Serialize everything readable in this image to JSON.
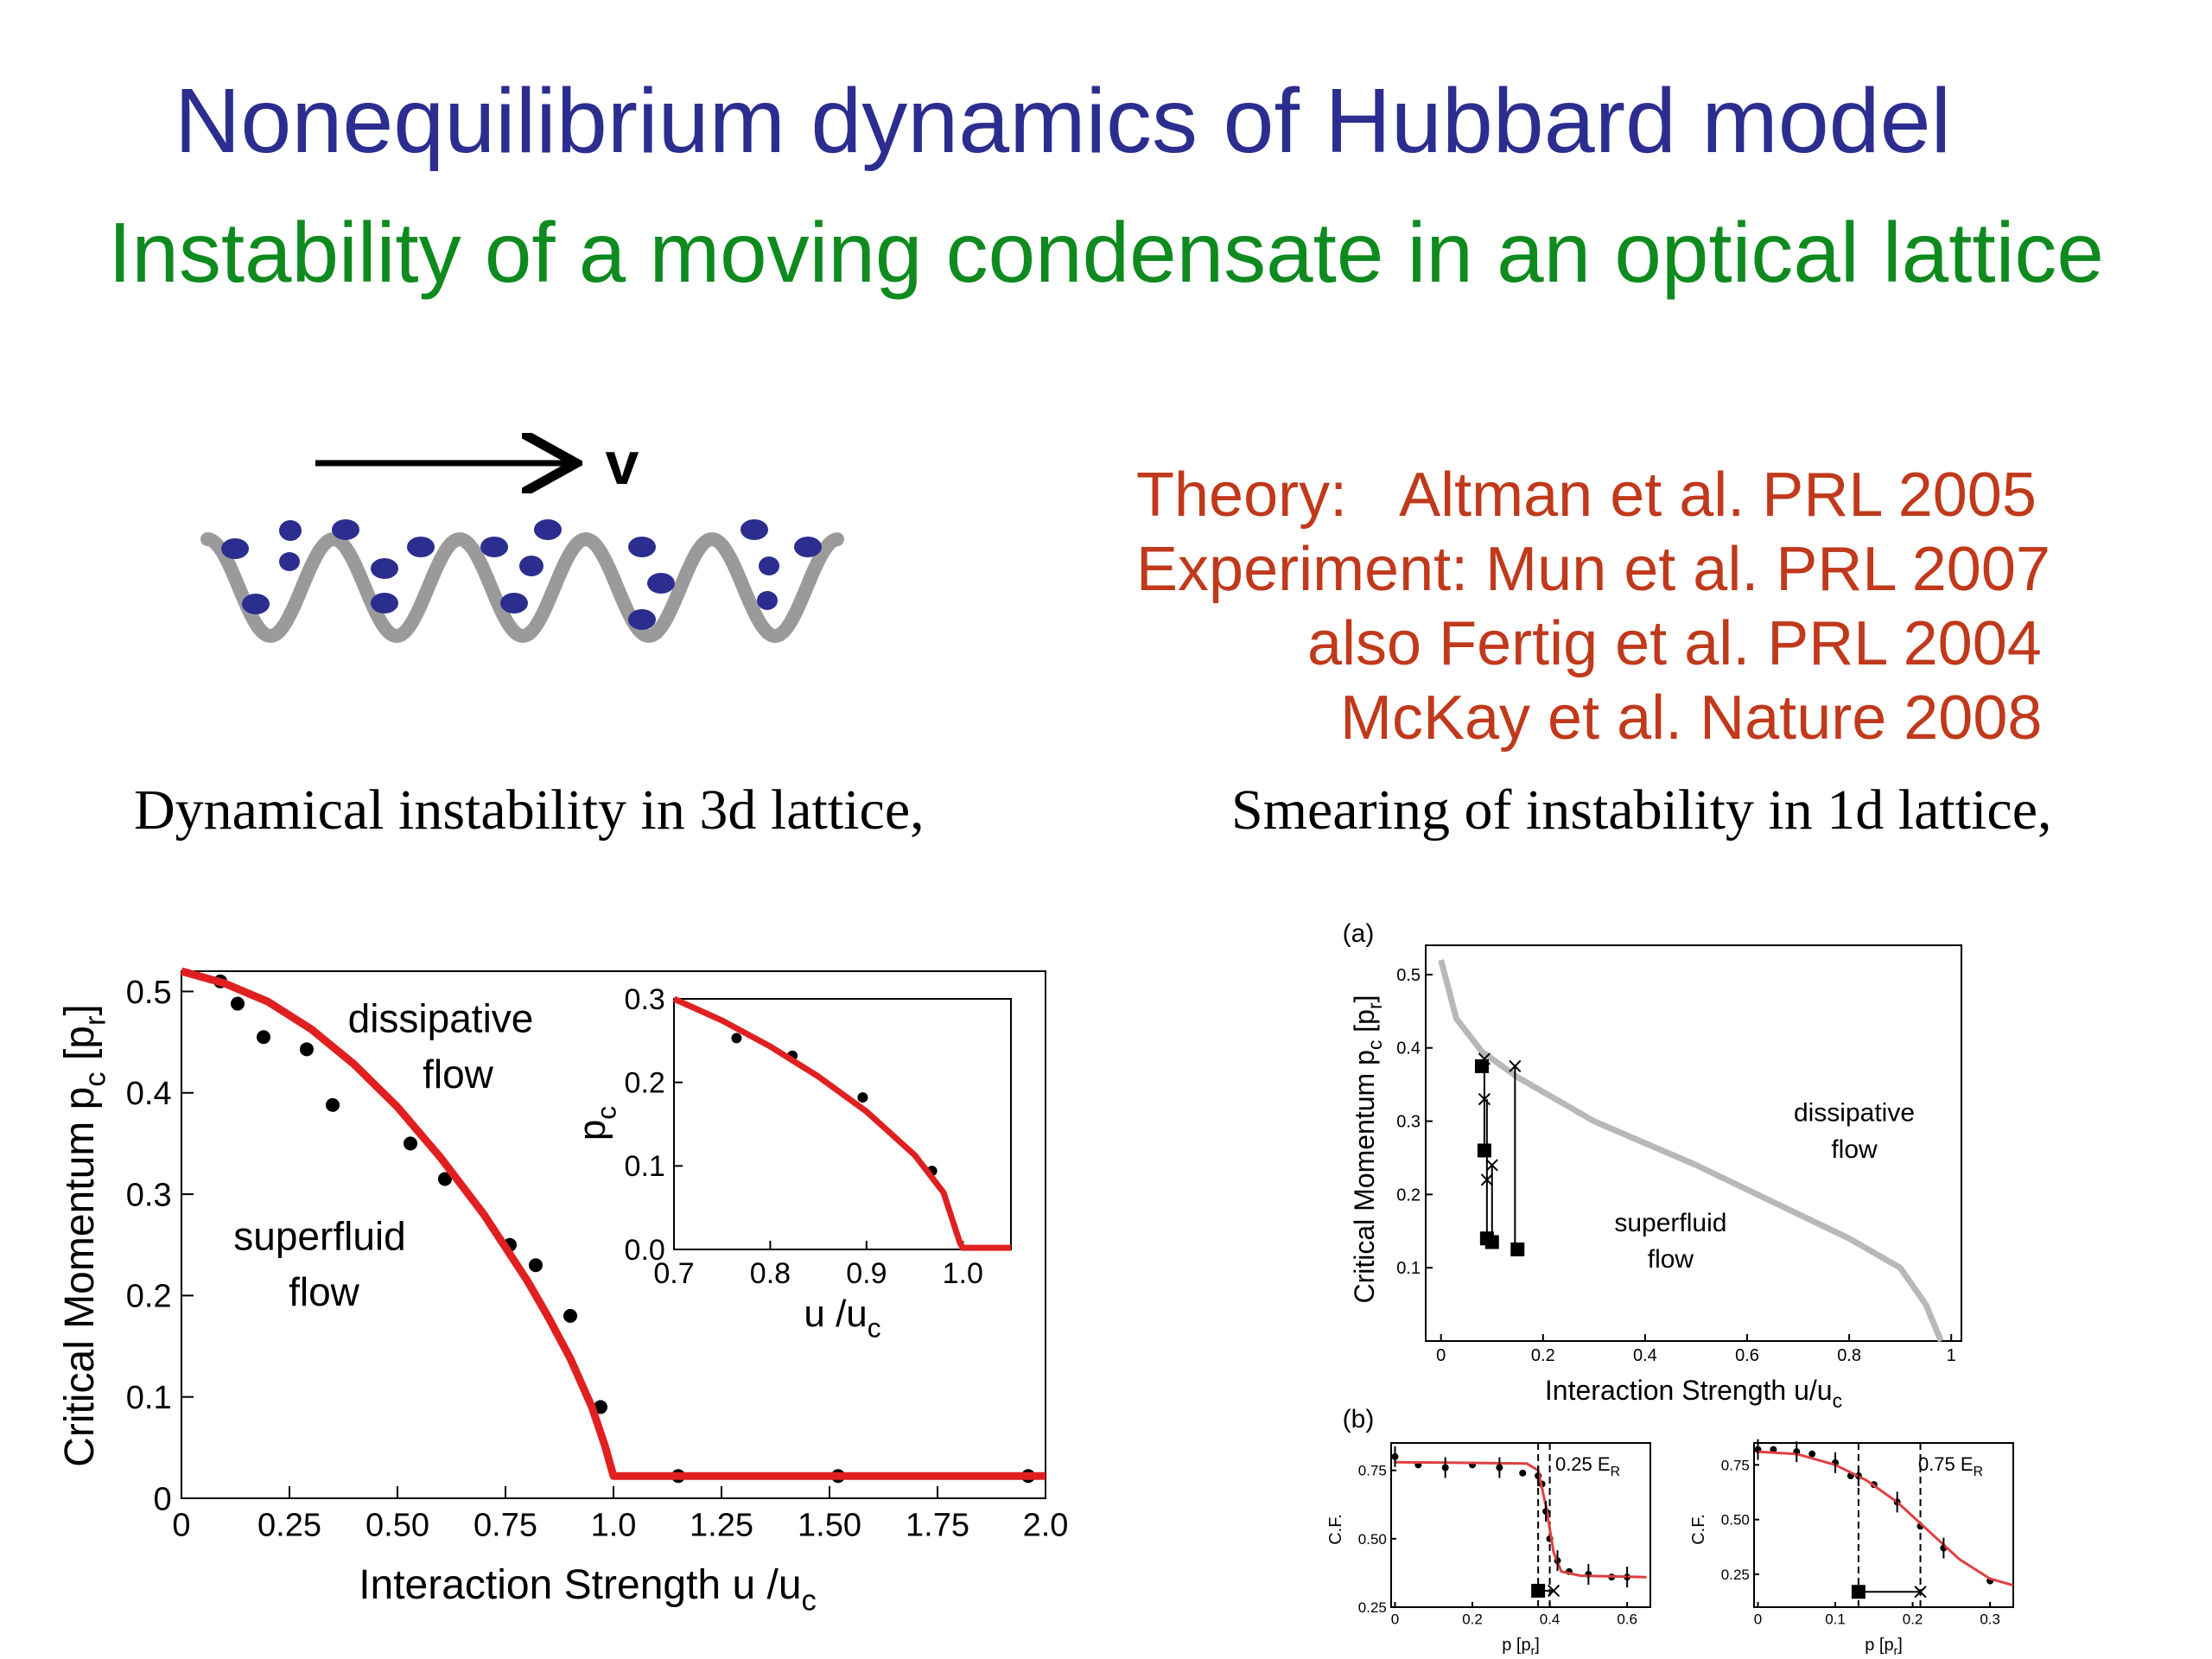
{
  "slide": {
    "title": "Nonequilibrium dynamics of Hubbard model",
    "subtitle": "Instability of a moving condensate in an optical lattice",
    "velocity_label": "v",
    "references": [
      {
        "label": "Theory:",
        "text": "Altman et al. PRL 2005"
      },
      {
        "label": "Experiment:",
        "text": "Mun et al. PRL 2007"
      },
      {
        "label": "",
        "text": "also Fertig et al. PRL 2004"
      },
      {
        "label": "",
        "text": "McKay et al. Nature 2008"
      }
    ],
    "caption_left": "Dynamical instability in 3d lattice,",
    "caption_right": "Smearing of instability in 1d lattice,"
  },
  "chart_data": [
    {
      "type": "scatter",
      "id": "main-3d",
      "xlabel_main": "Interaction Strength u /u",
      "xlabel_sub": "c",
      "ylabel_main": "Critical Momentum p",
      "ylabel_sub": "c",
      "ylabel_bracket": "[p",
      "ylabel_bracket_sub": "r",
      "ylabel_bracket_close": "]",
      "xlim": [
        0,
        2.0
      ],
      "ylim": [
        0,
        0.52
      ],
      "xticks": [
        0,
        0.25,
        0.5,
        0.75,
        1.0,
        1.25,
        1.5,
        1.75,
        2.0
      ],
      "xtick_labels": [
        "0",
        "0.25",
        "0.50",
        "0.75",
        "1.0",
        "1.25",
        "1.50",
        "1.75",
        "2.0"
      ],
      "yticks": [
        0,
        0.1,
        0.2,
        0.3,
        0.4,
        0.5
      ],
      "ytick_labels": [
        "0",
        "0.1",
        "0.2",
        "0.3",
        "0.4",
        "0.5"
      ],
      "series": [
        {
          "type": "scatter",
          "color": "#000000",
          "points": [
            [
              0.09,
              0.51
            ],
            [
              0.13,
              0.488
            ],
            [
              0.19,
              0.455
            ],
            [
              0.29,
              0.443
            ],
            [
              0.35,
              0.388
            ],
            [
              0.53,
              0.35
            ],
            [
              0.61,
              0.315
            ],
            [
              0.76,
              0.25
            ],
            [
              0.82,
              0.23
            ],
            [
              0.9,
              0.18
            ],
            [
              0.97,
              0.09
            ],
            [
              1.15,
              0.022
            ],
            [
              1.52,
              0.022
            ],
            [
              1.96,
              0.022
            ]
          ]
        },
        {
          "type": "line",
          "color": "#e02020",
          "curve": "theory",
          "points": [
            [
              0,
              0.52
            ],
            [
              0.1,
              0.508
            ],
            [
              0.2,
              0.49
            ],
            [
              0.3,
              0.463
            ],
            [
              0.4,
              0.428
            ],
            [
              0.5,
              0.386
            ],
            [
              0.6,
              0.336
            ],
            [
              0.7,
              0.28
            ],
            [
              0.8,
              0.215
            ],
            [
              0.85,
              0.178
            ],
            [
              0.9,
              0.138
            ],
            [
              0.95,
              0.09
            ],
            [
              0.98,
              0.052
            ],
            [
              1.0,
              0.022
            ],
            [
              2.0,
              0.022
            ]
          ]
        }
      ],
      "annotations": [
        {
          "text": "dissipative",
          "x": 0.6,
          "y": 0.46
        },
        {
          "text": "flow",
          "x": 0.64,
          "y": 0.405
        },
        {
          "text": "superfluid",
          "x": 0.32,
          "y": 0.245
        },
        {
          "text": "flow",
          "x": 0.33,
          "y": 0.19
        }
      ]
    },
    {
      "type": "line",
      "id": "inset-3d",
      "xlabel_main": "u /u",
      "xlabel_sub": "c",
      "ylabel_main": "p",
      "ylabel_sub": "c",
      "xlim": [
        0.7,
        1.05
      ],
      "ylim": [
        0,
        0.3
      ],
      "xticks": [
        0.7,
        0.8,
        0.9,
        1.0
      ],
      "xtick_labels": [
        "0.7",
        "0.8",
        "0.9",
        "1.0"
      ],
      "yticks": [
        0.0,
        0.1,
        0.2,
        0.3
      ],
      "ytick_labels": [
        "0.0",
        "0.1",
        "0.2",
        "0.3"
      ],
      "series": [
        {
          "type": "scatter",
          "color": "#000000",
          "points": [
            [
              0.765,
              0.253
            ],
            [
              0.823,
              0.232
            ],
            [
              0.896,
              0.182
            ],
            [
              0.968,
              0.094
            ]
          ]
        },
        {
          "type": "line",
          "color": "#e02020",
          "points": [
            [
              0.7,
              0.3
            ],
            [
              0.75,
              0.274
            ],
            [
              0.8,
              0.243
            ],
            [
              0.85,
              0.207
            ],
            [
              0.9,
              0.165
            ],
            [
              0.95,
              0.113
            ],
            [
              0.98,
              0.068
            ],
            [
              0.997,
              0.008
            ],
            [
              1.0,
              0.002
            ],
            [
              1.05,
              0.002
            ]
          ]
        }
      ]
    },
    {
      "type": "scatter",
      "id": "panel-a-1d",
      "panel_label": "(a)",
      "xlabel_main": "Interaction Strength u/u",
      "xlabel_sub": "c",
      "ylabel_main": "Critical Momentum p",
      "ylabel_sub": "c",
      "ylabel_bracket": "[p",
      "ylabel_bracket_sub": "r",
      "ylabel_bracket_close": "]",
      "xlim": [
        -0.03,
        1.02
      ],
      "ylim": [
        0,
        0.54
      ],
      "xticks": [
        0,
        0.2,
        0.4,
        0.6,
        0.8,
        1
      ],
      "xtick_labels": [
        "0",
        "0.2",
        "0.4",
        "0.6",
        "0.8",
        "1"
      ],
      "yticks": [
        0.1,
        0.2,
        0.3,
        0.4,
        0.5
      ],
      "ytick_labels": [
        "0.1",
        "0.2",
        "0.3",
        "0.4",
        "0.5"
      ],
      "series": [
        {
          "type": "line",
          "color": "#b8b8b8",
          "points": [
            [
              0.0,
              0.52
            ],
            [
              0.03,
              0.44
            ],
            [
              0.08,
              0.395
            ],
            [
              0.15,
              0.36
            ],
            [
              0.3,
              0.3
            ],
            [
              0.5,
              0.24
            ],
            [
              0.65,
              0.19
            ],
            [
              0.8,
              0.14
            ],
            [
              0.9,
              0.1
            ],
            [
              0.95,
              0.05
            ],
            [
              0.98,
              0.0
            ]
          ]
        },
        {
          "type": "scatter",
          "marker": "square",
          "color": "#000000",
          "points": [
            [
              0.08,
              0.375
            ],
            [
              0.085,
              0.26
            ],
            [
              0.09,
              0.14
            ],
            [
              0.1,
              0.135
            ],
            [
              0.15,
              0.125
            ]
          ]
        },
        {
          "type": "scatter",
          "marker": "cross",
          "color": "#000000",
          "points": [
            [
              0.085,
              0.385
            ],
            [
              0.085,
              0.33
            ],
            [
              0.09,
              0.22
            ],
            [
              0.1,
              0.24
            ],
            [
              0.145,
              0.375
            ]
          ]
        }
      ],
      "annotations": [
        {
          "text": "dissipative",
          "x": 0.81,
          "y": 0.3
        },
        {
          "text": "flow",
          "x": 0.81,
          "y": 0.25
        },
        {
          "text": "superfluid",
          "x": 0.45,
          "y": 0.15
        },
        {
          "text": "flow",
          "x": 0.45,
          "y": 0.1
        }
      ]
    },
    {
      "type": "scatter",
      "id": "panel-b-left",
      "panel_label": "(b)",
      "xlabel_main": "p [p",
      "xlabel_sub": "r",
      "xlabel_close": "]",
      "ylabel_main": "C.F.",
      "label": "0.25 E",
      "label_sub": "R",
      "xlim": [
        -0.01,
        0.66
      ],
      "ylim": [
        0.25,
        0.85
      ],
      "xticks": [
        0,
        0.2,
        0.4,
        0.6
      ],
      "xtick_labels": [
        "0",
        "0.2",
        "0.4",
        "0.6"
      ],
      "yticks": [
        0.25,
        0.5,
        0.75
      ],
      "ytick_labels": [
        "0.25",
        "0.50",
        "0.75"
      ],
      "series": [
        {
          "type": "scatter",
          "color": "#000000",
          "points": [
            [
              0.0,
              0.8
            ],
            [
              0.06,
              0.77
            ],
            [
              0.13,
              0.76
            ],
            [
              0.2,
              0.77
            ],
            [
              0.27,
              0.76
            ],
            [
              0.33,
              0.74
            ],
            [
              0.37,
              0.73
            ],
            [
              0.38,
              0.7
            ],
            [
              0.39,
              0.6
            ],
            [
              0.4,
              0.5
            ],
            [
              0.42,
              0.42
            ],
            [
              0.45,
              0.38
            ],
            [
              0.5,
              0.37
            ],
            [
              0.56,
              0.36
            ],
            [
              0.6,
              0.36
            ]
          ]
        },
        {
          "type": "line",
          "color": "#e04040",
          "points": [
            [
              0.0,
              0.78
            ],
            [
              0.34,
              0.775
            ],
            [
              0.37,
              0.75
            ],
            [
              0.39,
              0.62
            ],
            [
              0.41,
              0.45
            ],
            [
              0.43,
              0.38
            ],
            [
              0.48,
              0.365
            ],
            [
              0.65,
              0.36
            ]
          ]
        },
        {
          "type": "scatter",
          "marker": "square",
          "color": "#000000",
          "points": [
            [
              0.37,
              0.31
            ]
          ]
        },
        {
          "type": "scatter",
          "marker": "cross",
          "color": "#000000",
          "points": [
            [
              0.41,
              0.31
            ]
          ]
        }
      ],
      "vlines": [
        0.37,
        0.4
      ]
    },
    {
      "type": "scatter",
      "id": "panel-b-right",
      "xlabel_main": "p [p",
      "xlabel_sub": "r",
      "xlabel_close": "]",
      "ylabel_main": "C.F.",
      "label": "0.75 E",
      "label_sub": "R",
      "xlim": [
        -0.005,
        0.33
      ],
      "ylim": [
        0.1,
        0.85
      ],
      "xticks": [
        0,
        0.1,
        0.2,
        0.3
      ],
      "xtick_labels": [
        "0",
        "0.1",
        "0.2",
        "0.3"
      ],
      "yticks": [
        0.25,
        0.5,
        0.75
      ],
      "ytick_labels": [
        "0.25",
        "0.50",
        "0.75"
      ],
      "series": [
        {
          "type": "scatter",
          "color": "#000000",
          "points": [
            [
              0.0,
              0.82
            ],
            [
              0.02,
              0.82
            ],
            [
              0.05,
              0.81
            ],
            [
              0.07,
              0.8
            ],
            [
              0.1,
              0.76
            ],
            [
              0.12,
              0.7
            ],
            [
              0.13,
              0.7
            ],
            [
              0.15,
              0.66
            ],
            [
              0.18,
              0.58
            ],
            [
              0.21,
              0.47
            ],
            [
              0.24,
              0.37
            ],
            [
              0.3,
              0.22
            ]
          ]
        },
        {
          "type": "line",
          "color": "#e04040",
          "points": [
            [
              0.0,
              0.81
            ],
            [
              0.05,
              0.8
            ],
            [
              0.1,
              0.75
            ],
            [
              0.14,
              0.68
            ],
            [
              0.18,
              0.58
            ],
            [
              0.22,
              0.45
            ],
            [
              0.26,
              0.32
            ],
            [
              0.3,
              0.23
            ],
            [
              0.33,
              0.2
            ]
          ]
        },
        {
          "type": "scatter",
          "marker": "square",
          "color": "#000000",
          "points": [
            [
              0.13,
              0.17
            ]
          ]
        },
        {
          "type": "scatter",
          "marker": "cross",
          "color": "#000000",
          "points": [
            [
              0.21,
              0.17
            ]
          ]
        }
      ],
      "vlines": [
        0.13,
        0.21
      ]
    }
  ]
}
